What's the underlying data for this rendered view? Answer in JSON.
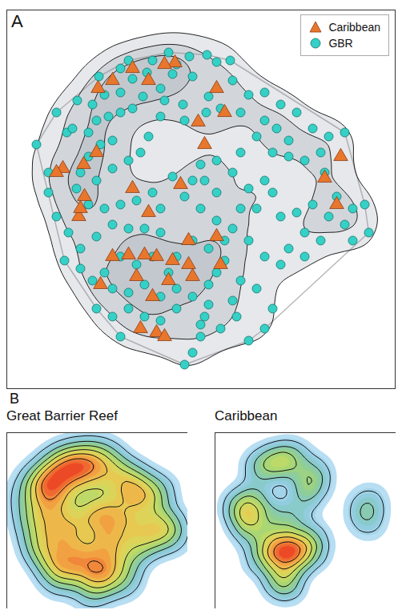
{
  "chart_data": [
    {
      "type": "scatter",
      "panel_label": "A",
      "legend": "top-right",
      "tick_labels": false,
      "xlim": [
        8,
        493
      ],
      "ylim": [
        485,
        12
      ],
      "series": [
        {
          "name": "Caribbean",
          "color": "#e8762c",
          "marker": "triangle",
          "x": [
            218,
            205,
            185,
            165,
            140,
            120,
            104,
            78,
            98,
            105,
            165,
            225,
            247,
            280,
            255,
            270,
            405,
            420,
            425,
            185,
            235,
            270,
            275,
            235,
            215,
            195,
            180,
            160,
            140,
            125,
            170,
            190,
            210,
            240,
            175,
            195,
            205,
            70,
            122,
            100
          ],
          "y": [
            78,
            80,
            100,
            85,
            100,
            190,
            205,
            210,
            270,
            245,
            235,
            230,
            152,
            140,
            180,
            110,
            222,
            255,
            195,
            265,
            300,
            295,
            330,
            330,
            325,
            320,
            318,
            318,
            320,
            355,
            345,
            370,
            350,
            345,
            410,
            415,
            420,
            215,
            110,
            260
          ]
        },
        {
          "name": "GBR",
          "color": "#35d0c6",
          "marker": "circle",
          "x": [
            236,
            258,
            270,
            287,
            220,
            183,
            150,
            165,
            123,
            200,
            215,
            240,
            205,
            228,
            178,
            150,
            130,
            115,
            96,
            83,
            70,
            90,
            110,
            120,
            135,
            150,
            165,
            140,
            125,
            110,
            100,
            95,
            120,
            140,
            160,
            175,
            185,
            200,
            230,
            257,
            275,
            260,
            290,
            310,
            300,
            330,
            350,
            370,
            390,
            360,
            345,
            330,
            320,
            340,
            360,
            380,
            400,
            410,
            430,
            405,
            420,
            390,
            410,
            430,
            440,
            455,
            460,
            440,
            400,
            380,
            370,
            350,
            360,
            380,
            350,
            330,
            310,
            290,
            270,
            250,
            230,
            270,
            255,
            250,
            270,
            300,
            290,
            310,
            330,
            320,
            340,
            300,
            280,
            260,
            240,
            220,
            200,
            180,
            160,
            140,
            120,
            100,
            85,
            70,
            60,
            45,
            60,
            80,
            100,
            115,
            130,
            150,
            170,
            190,
            210,
            220,
            200,
            180,
            160,
            140,
            120,
            140,
            160,
            180,
            200,
            220,
            240,
            260,
            270,
            280,
            300,
            290,
            295,
            275,
            255,
            250,
            240,
            230,
            250,
            320,
            340,
            330,
            310,
            260,
            150,
            240,
            215,
            190,
            170,
            150,
            130,
            110,
            200,
            190,
            160,
            210
          ],
          "y": [
            70,
            68,
            77,
            75,
            80,
            90,
            85,
            98,
            95,
            110,
            92,
            95,
            125,
            130,
            120,
            115,
            118,
            130,
            125,
            165,
            140,
            160,
            165,
            150,
            145,
            140,
            135,
            175,
            180,
            195,
            215,
            235,
            225,
            210,
            200,
            190,
            170,
            145,
            150,
            140,
            135,
            120,
            100,
            118,
            140,
            115,
            130,
            140,
            160,
            175,
            160,
            150,
            170,
            190,
            195,
            200,
            190,
            170,
            165,
            215,
            245,
            255,
            270,
            280,
            260,
            255,
            290,
            300,
            300,
            290,
            265,
            270,
            310,
            320,
            330,
            320,
            300,
            285,
            275,
            260,
            245,
            240,
            225,
            205,
            200,
            190,
            215,
            235,
            225,
            260,
            240,
            260,
            300,
            310,
            300,
            320,
            290,
            285,
            285,
            280,
            295,
            310,
            290,
            270,
            240,
            180,
            215,
            325,
            335,
            350,
            340,
            320,
            330,
            320,
            340,
            360,
            370,
            355,
            365,
            360,
            385,
            395,
            385,
            395,
            400,
            385,
            370,
            355,
            340,
            325,
            350,
            375,
            395,
            410,
            395,
            420,
            440,
            455,
            405,
            360,
            385,
            410,
            425,
            380,
            420,
            225,
            220,
            240,
            250,
            255,
            260,
            255,
            260,
            75,
            75,
            65
          ]
        }
      ]
    },
    {
      "type": "density",
      "panel_label": "B",
      "title": "Great Barrier Reef",
      "series": "GBR",
      "tick_labels": false,
      "xlim": [
        8,
        493
      ],
      "ylim": [
        485,
        12
      ]
    },
    {
      "type": "density",
      "title": "Caribbean",
      "series": "Caribbean",
      "tick_labels": false,
      "xlim": [
        8,
        493
      ],
      "ylim": [
        485,
        12
      ]
    }
  ]
}
